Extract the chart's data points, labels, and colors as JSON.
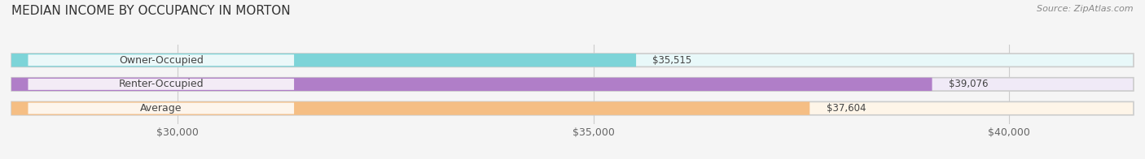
{
  "title": "MEDIAN INCOME BY OCCUPANCY IN MORTON",
  "source": "Source: ZipAtlas.com",
  "categories": [
    "Owner-Occupied",
    "Renter-Occupied",
    "Average"
  ],
  "values": [
    35515,
    39076,
    37604
  ],
  "bar_colors": [
    "#7dd4d8",
    "#b07ec8",
    "#f5be84"
  ],
  "bar_bg_colors": [
    "#e8f8f9",
    "#f0eaf7",
    "#fef5e8"
  ],
  "value_labels": [
    "$35,515",
    "$39,076",
    "$37,604"
  ],
  "x_min": 28000,
  "x_max": 41500,
  "x_ticks": [
    30000,
    35000,
    40000
  ],
  "x_tick_labels": [
    "$30,000",
    "$35,000",
    "$40,000"
  ],
  "title_fontsize": 11,
  "label_fontsize": 9,
  "value_fontsize": 8.5,
  "source_fontsize": 8,
  "background_color": "#f5f5f5"
}
